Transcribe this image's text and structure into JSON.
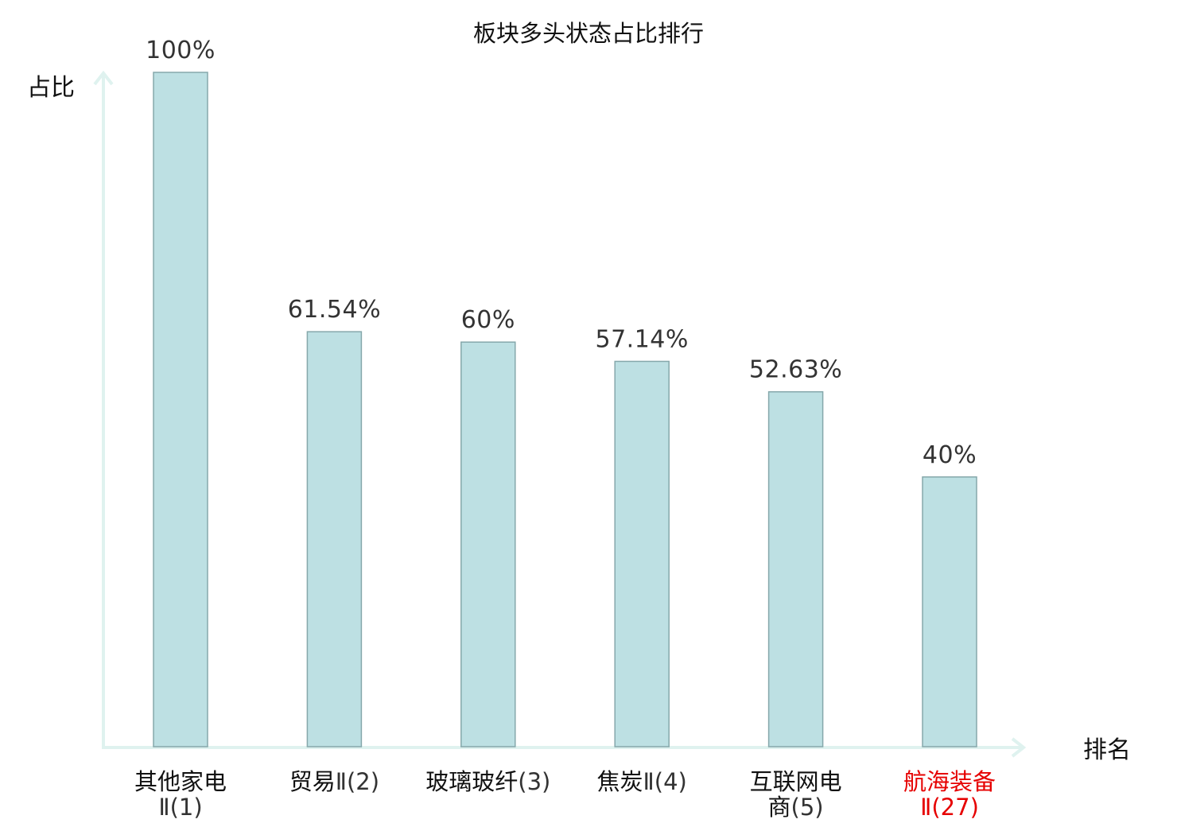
{
  "chart_data": {
    "type": "bar",
    "title": "板块多头状态占比排行",
    "ylabel": "占比",
    "xlabel": "排名",
    "ylim": [
      0,
      100
    ],
    "grid": false,
    "categories": [
      {
        "name": [
          "其他家电",
          ""
        ],
        "rank": "Ⅱ(1)",
        "highlight": false
      },
      {
        "name": [
          "贸易"
        ],
        "rank": "Ⅱ(2)",
        "highlight": false
      },
      {
        "name": [
          "玻璃玻纤"
        ],
        "rank": "(3)",
        "highlight": false
      },
      {
        "name": [
          "焦炭"
        ],
        "rank": "Ⅱ(4)",
        "highlight": false
      },
      {
        "name": [
          "互联网电",
          "商"
        ],
        "rank": "(5)",
        "highlight": false
      },
      {
        "name": [
          "航海装备",
          ""
        ],
        "rank": "Ⅱ(27)",
        "highlight": true
      }
    ],
    "values": [
      100,
      61.54,
      60,
      57.14,
      52.63,
      40
    ],
    "value_labels": [
      "100%",
      "61.54%",
      "60%",
      "57.14%",
      "52.63%",
      "40%"
    ],
    "colors": {
      "bar_fill": "#bde0e3",
      "bar_stroke": "#86a8ab",
      "axis": "#dff2ef",
      "highlight": "#e60000"
    }
  }
}
